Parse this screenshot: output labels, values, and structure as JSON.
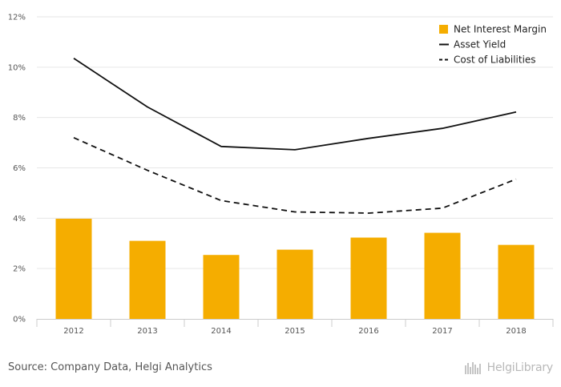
{
  "chart_data": {
    "type": "bar",
    "categories": [
      "2012",
      "2013",
      "2014",
      "2015",
      "2016",
      "2017",
      "2018"
    ],
    "series": [
      {
        "name": "Net Interest Margin",
        "kind": "bar",
        "values": [
          3.98,
          3.1,
          2.54,
          2.75,
          3.23,
          3.42,
          2.94
        ],
        "color": "#f5ad00"
      },
      {
        "name": "Asset Yield",
        "kind": "line",
        "style": "solid",
        "values": [
          10.35,
          8.42,
          6.85,
          6.72,
          7.17,
          7.57,
          8.22
        ],
        "color": "#111111"
      },
      {
        "name": "Cost of Liabilities",
        "kind": "line",
        "style": "dashed",
        "values": [
          7.2,
          5.9,
          4.7,
          4.25,
          4.2,
          4.4,
          5.55
        ],
        "color": "#111111"
      }
    ],
    "yticks": [
      "0%",
      "2%",
      "4%",
      "6%",
      "8%",
      "10%",
      "12%"
    ],
    "ylim": [
      0,
      12
    ],
    "grid": true,
    "legend_position": "top-right"
  },
  "footer": {
    "source": "Source: Company Data, Helgi Analytics",
    "brand": "HelgiLibrary"
  }
}
